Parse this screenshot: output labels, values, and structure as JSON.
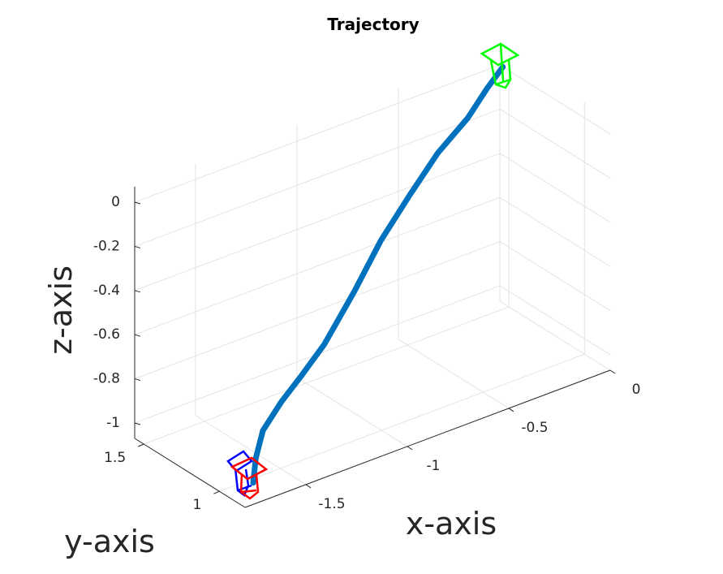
{
  "chart_data": {
    "type": "line3d",
    "title": "Trajectory",
    "xlabel": "x-axis",
    "ylabel": "y-axis",
    "zlabel": "z-axis",
    "x": [
      -1.73,
      -1.71,
      -1.66,
      -1.54,
      -1.4,
      -1.23,
      -1.03,
      -0.84,
      -0.64,
      -0.44,
      -0.24,
      -0.1,
      0.0
    ],
    "y": [
      0.87,
      0.88,
      0.9,
      0.94,
      1.0,
      1.07,
      1.14,
      1.22,
      1.3,
      1.38,
      1.45,
      1.51,
      1.54
    ],
    "z": [
      -1.0,
      -0.9,
      -0.8,
      -0.73,
      -0.69,
      -0.63,
      -0.49,
      -0.36,
      -0.26,
      -0.17,
      -0.11,
      -0.05,
      0.0
    ],
    "color": "#0072bd",
    "xlim": [
      -1.8,
      0.0
    ],
    "ylim": [
      0.83,
      1.56
    ],
    "zlim": [
      -1.07,
      0.07
    ],
    "xticks": [
      -1.5,
      -1,
      -0.5,
      0
    ],
    "yticks": [
      1,
      1.5
    ],
    "zticks": [
      -1,
      -0.8,
      -0.6,
      -0.4,
      -0.2,
      0
    ],
    "grid": true
  }
}
